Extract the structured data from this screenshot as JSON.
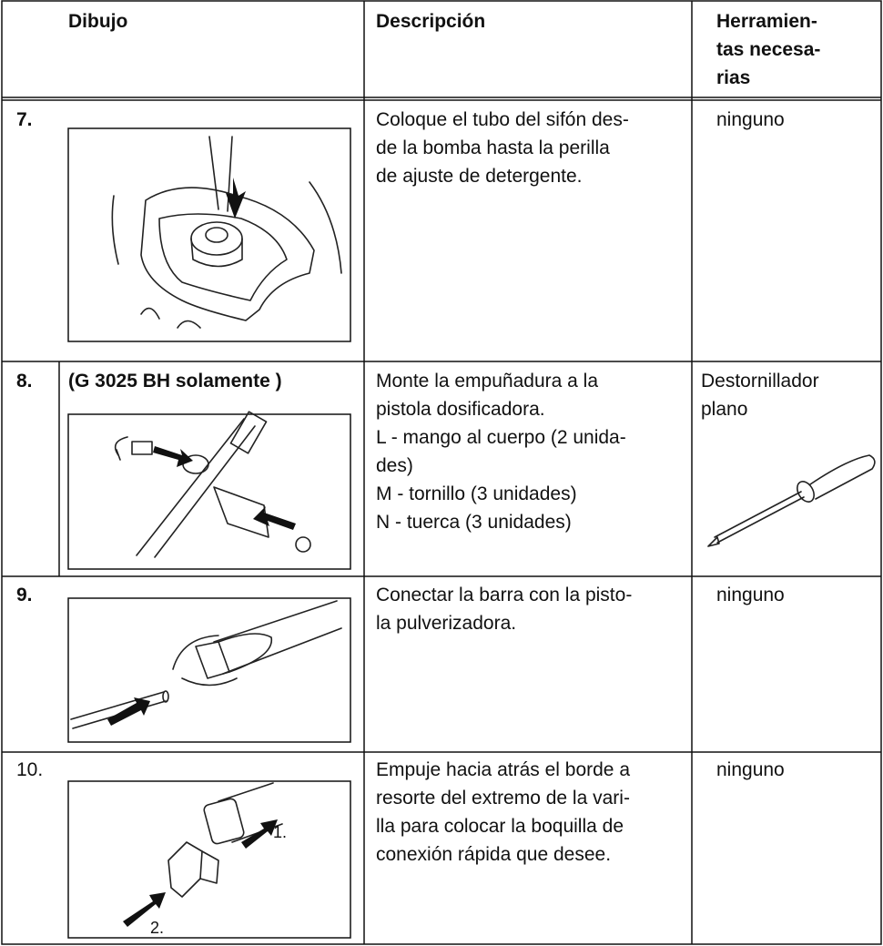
{
  "table": {
    "header": {
      "drawing": "Dibujo",
      "description": "Descripción",
      "tools": [
        "Herramien-",
        "tas necesa-",
        "rias"
      ]
    },
    "rows": [
      {
        "number": "7.",
        "description": [
          "Coloque el tubo del sifón des-",
          "de la bomba hasta la perilla",
          "de ajuste de detergente."
        ],
        "tools": [
          "ninguno"
        ]
      },
      {
        "number": "8.",
        "note": "(G 3025 BH solamente )",
        "description": [
          "Monte la empuñadura a la",
          "pistola dosificadora.",
          "L - mango al cuerpo (2 unida-",
          "des)",
          "M - tornillo (3 unidades)",
          "N - tuerca (3 unidades)"
        ],
        "tools": [
          "Destornillador",
          "plano"
        ]
      },
      {
        "number": "9.",
        "description": [
          "Conectar la barra con la pisto-",
          "la pulverizadora."
        ],
        "tools": [
          "ninguno"
        ]
      },
      {
        "number": "10.",
        "description": [
          "Empuje hacia atrás el borde a",
          "resorte del extremo de la vari-",
          "lla para colocar la boquilla de",
          "conexión rápida que desee."
        ],
        "tools": [
          "ninguno"
        ],
        "callouts": [
          "1.",
          "2."
        ]
      }
    ]
  }
}
